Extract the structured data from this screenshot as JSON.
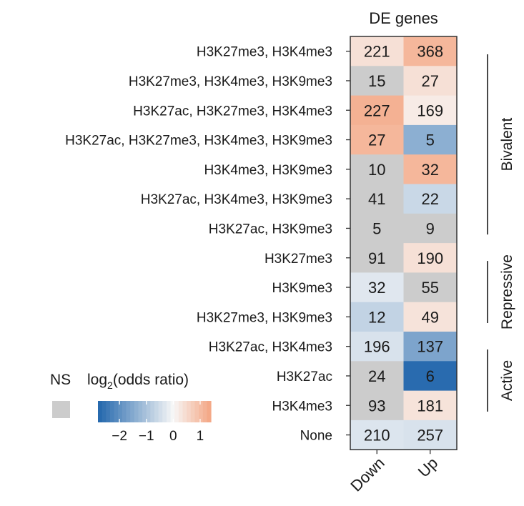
{
  "chart_data": {
    "type": "heatmap",
    "title": "DE genes",
    "columns": [
      "Down",
      "Up"
    ],
    "rows": [
      "H3K27me3, H3K4me3",
      "H3K27me3, H3K4me3, H3K9me3",
      "H3K27ac, H3K27me3, H3K4me3",
      "H3K27ac, H3K27me3, H3K4me3, H3K9me3",
      "H3K4me3, H3K9me3",
      "H3K27ac, H3K4me3, H3K9me3",
      "H3K27ac, H3K9me3",
      "H3K27me3",
      "H3K9me3",
      "H3K27me3, H3K9me3",
      "H3K27ac, H3K4me3",
      "H3K27ac",
      "H3K4me3",
      "None"
    ],
    "counts": [
      [
        221,
        368
      ],
      [
        15,
        27
      ],
      [
        227,
        169
      ],
      [
        27,
        5
      ],
      [
        10,
        32
      ],
      [
        41,
        22
      ],
      [
        5,
        9
      ],
      [
        91,
        190
      ],
      [
        32,
        55
      ],
      [
        12,
        49
      ],
      [
        196,
        137
      ],
      [
        24,
        6
      ],
      [
        93,
        181
      ],
      [
        210,
        257
      ]
    ],
    "log2_odds_ratio": [
      [
        0.4,
        1.1
      ],
      [
        null,
        0.4
      ],
      [
        1.2,
        0.2
      ],
      [
        1.1,
        -1.4
      ],
      [
        null,
        1.1
      ],
      [
        null,
        -0.6
      ],
      [
        null,
        null
      ],
      [
        null,
        0.4
      ],
      [
        -0.3,
        null
      ],
      [
        -0.7,
        0.35
      ],
      [
        -0.4,
        -1.6
      ],
      [
        null,
        -2.7
      ],
      [
        null,
        0.35
      ],
      [
        -0.35,
        -0.4
      ]
    ],
    "groups": [
      {
        "label": "Bivalent",
        "from": 0,
        "to": 6
      },
      {
        "label": "Repressive",
        "from": 7,
        "to": 9
      },
      {
        "label": "Active",
        "from": 10,
        "to": 12
      }
    ],
    "legend": {
      "ns_label": "NS",
      "title_prefix": "log",
      "title_sub": "2",
      "title_suffix": "(odds ratio)",
      "min": -2.8,
      "max": 1.4,
      "ticks": [
        -2,
        -1,
        0,
        1
      ],
      "tick_labels": [
        "−2",
        "−1",
        "0",
        "1"
      ],
      "placement": "bottom-left"
    },
    "colors": {
      "ns": "#cccccc",
      "negative": "#2166ac",
      "neutral": "#f7f7f7",
      "positive": "#f4a582"
    }
  }
}
